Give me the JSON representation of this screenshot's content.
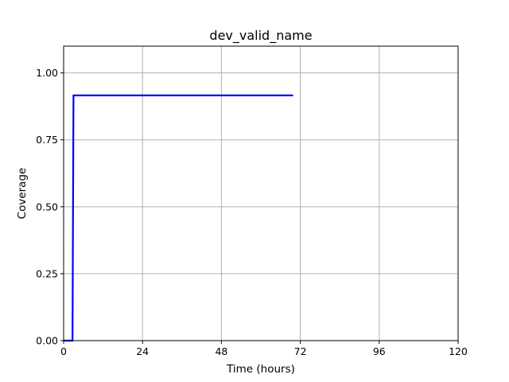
{
  "chart_data": {
    "type": "line",
    "title": "dev_valid_name",
    "xlabel": "Time (hours)",
    "ylabel": "Coverage",
    "xlim": [
      0,
      120
    ],
    "ylim": [
      0,
      1.1
    ],
    "xticks": [
      0,
      24,
      48,
      72,
      96,
      120
    ],
    "yticks": [
      0.0,
      0.25,
      0.5,
      0.75,
      1.0
    ],
    "xtick_labels": [
      "0",
      "24",
      "48",
      "72",
      "96",
      "120"
    ],
    "ytick_labels": [
      "0.00",
      "0.25",
      "0.50",
      "0.75",
      "1.00"
    ],
    "grid": true,
    "series": [
      {
        "color": "#0000ff",
        "x": [
          0,
          2.7,
          3.0,
          69.8
        ],
        "y": [
          0,
          0,
          0.916,
          0.916
        ]
      }
    ]
  }
}
